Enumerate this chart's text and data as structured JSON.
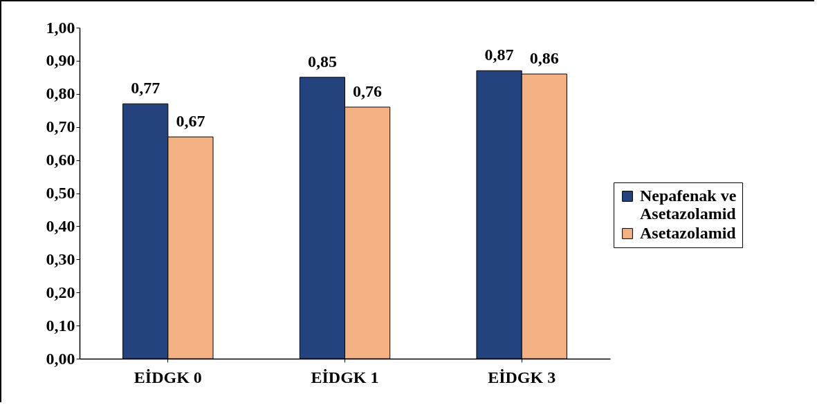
{
  "chart_data": {
    "type": "bar",
    "categories": [
      "EİDGK 0",
      "EİDGK 1",
      "EİDGK 3"
    ],
    "series": [
      {
        "name": "Nepafenak ve Asetazolamid",
        "color": "#23427e",
        "values": [
          0.77,
          0.85,
          0.87
        ],
        "value_labels": [
          "0,77",
          "0,85",
          "0,87"
        ]
      },
      {
        "name": "Asetazolamid",
        "color": "#f4b183",
        "values": [
          0.67,
          0.76,
          0.86
        ],
        "value_labels": [
          "0,67",
          "0,76",
          "0,86"
        ]
      }
    ],
    "ylim": [
      0,
      1
    ],
    "yticks": [
      {
        "value": 0,
        "label": "0,00"
      },
      {
        "value": 0.1,
        "label": "0,10"
      },
      {
        "value": 0.2,
        "label": "0,20"
      },
      {
        "value": 0.3,
        "label": "0,30"
      },
      {
        "value": 0.4,
        "label": "0,40"
      },
      {
        "value": 0.5,
        "label": "0,50"
      },
      {
        "value": 0.6,
        "label": "0,60"
      },
      {
        "value": 0.7,
        "label": "0,70"
      },
      {
        "value": 0.8,
        "label": "0,80"
      },
      {
        "value": 0.9,
        "label": "0,90"
      },
      {
        "value": 1,
        "label": "1,00"
      }
    ],
    "grid": false,
    "legend": "right"
  }
}
